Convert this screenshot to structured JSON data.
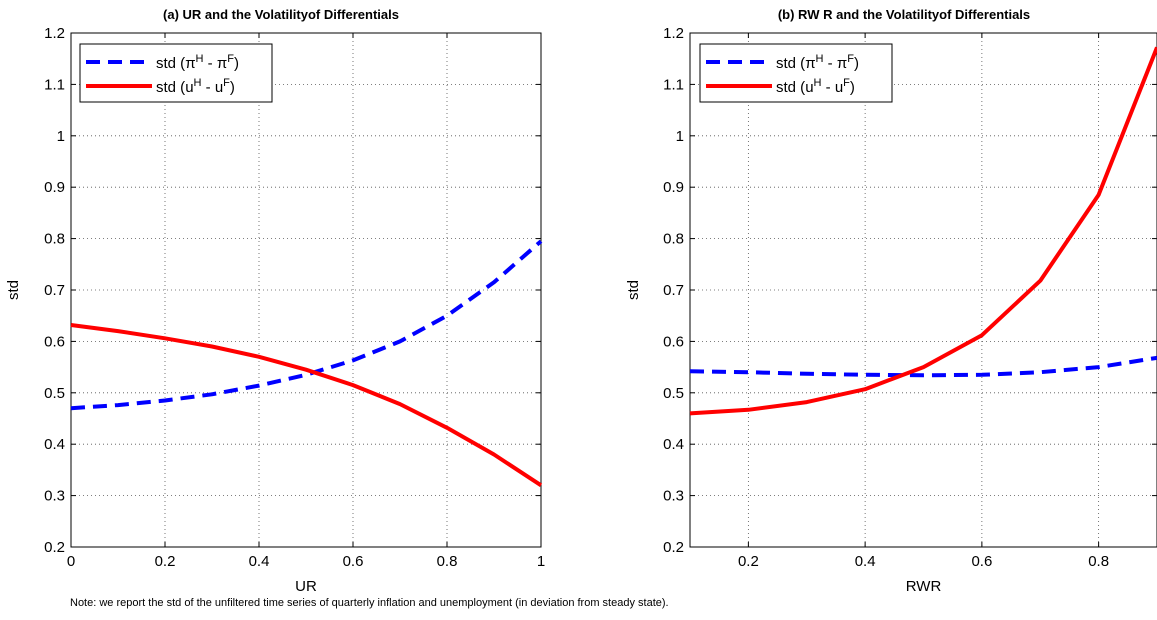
{
  "chart_data": [
    {
      "type": "line",
      "title": "(a) UR and the Volatilityof Differentials",
      "xlabel": "UR",
      "ylabel": "std",
      "xlim": [
        0,
        1
      ],
      "ylim": [
        0.2,
        1.2
      ],
      "xticks": [
        0,
        0.2,
        0.4,
        0.6,
        0.8,
        1
      ],
      "xtick_labels": [
        "0",
        "0.2",
        "0.4",
        "0.6",
        "0.8",
        "1"
      ],
      "yticks": [
        0.2,
        0.3,
        0.4,
        0.5,
        0.6,
        0.7,
        0.8,
        0.9,
        1,
        1.1,
        1.2
      ],
      "ytick_labels": [
        "0.2",
        "0.3",
        "0.4",
        "0.5",
        "0.6",
        "0.7",
        "0.8",
        "0.9",
        "1",
        "1.1",
        "1.2"
      ],
      "grid": true,
      "legend_position": "top-left",
      "series": [
        {
          "name": "std (π^H - π^F)",
          "legend_base": "std (",
          "legend_sym1": "π",
          "legend_sup1": "H",
          "legend_mid": " -  ",
          "legend_sym2": "π",
          "legend_sup2": "F",
          "legend_end": ")",
          "color": "#0000ff",
          "style": "dashed",
          "x": [
            0,
            0.1,
            0.2,
            0.3,
            0.4,
            0.5,
            0.6,
            0.7,
            0.8,
            0.9,
            1.0
          ],
          "y": [
            0.47,
            0.476,
            0.485,
            0.497,
            0.514,
            0.535,
            0.563,
            0.6,
            0.65,
            0.715,
            0.795
          ]
        },
        {
          "name": "std (u^H - u^F)",
          "legend_base": "std (",
          "legend_sym1": "u",
          "legend_sup1": "H",
          "legend_mid": " -  ",
          "legend_sym2": "u",
          "legend_sup2": "F",
          "legend_end": ")",
          "color": "#ff0000",
          "style": "solid",
          "x": [
            0,
            0.1,
            0.2,
            0.3,
            0.4,
            0.5,
            0.6,
            0.7,
            0.8,
            0.9,
            1.0
          ],
          "y": [
            0.632,
            0.62,
            0.606,
            0.59,
            0.57,
            0.545,
            0.515,
            0.478,
            0.432,
            0.38,
            0.32
          ]
        }
      ]
    },
    {
      "type": "line",
      "title": "(b) RW R and the Volatilityof Differentials",
      "xlabel": "RWR",
      "ylabel": "std",
      "xlim": [
        0.1,
        0.9
      ],
      "ylim": [
        0.2,
        1.2
      ],
      "xticks": [
        0.2,
        0.4,
        0.6,
        0.8
      ],
      "xtick_labels": [
        "0.2",
        "0.4",
        "0.6",
        "0.8"
      ],
      "yticks": [
        0.2,
        0.3,
        0.4,
        0.5,
        0.6,
        0.7,
        0.8,
        0.9,
        1,
        1.1,
        1.2
      ],
      "ytick_labels": [
        "0.2",
        "0.3",
        "0.4",
        "0.5",
        "0.6",
        "0.7",
        "0.8",
        "0.9",
        "1",
        "1.1",
        "1.2"
      ],
      "grid": true,
      "legend_position": "top-left",
      "series": [
        {
          "name": "std (π^H - π^F)",
          "legend_base": "std (",
          "legend_sym1": "π",
          "legend_sup1": "H",
          "legend_mid": " -  ",
          "legend_sym2": "π",
          "legend_sup2": "F",
          "legend_end": ")",
          "color": "#0000ff",
          "style": "dashed",
          "x": [
            0.1,
            0.2,
            0.3,
            0.4,
            0.5,
            0.6,
            0.7,
            0.8,
            0.9
          ],
          "y": [
            0.542,
            0.54,
            0.537,
            0.535,
            0.534,
            0.535,
            0.54,
            0.55,
            0.568
          ]
        },
        {
          "name": "std (u^H - u^F)",
          "legend_base": "std (",
          "legend_sym1": "u",
          "legend_sup1": "H",
          "legend_mid": " -  ",
          "legend_sym2": "u",
          "legend_sup2": "F",
          "legend_end": ")",
          "color": "#ff0000",
          "style": "solid",
          "x": [
            0.1,
            0.2,
            0.3,
            0.4,
            0.5,
            0.6,
            0.7,
            0.8,
            0.9
          ],
          "y": [
            0.46,
            0.467,
            0.482,
            0.507,
            0.55,
            0.612,
            0.718,
            0.885,
            1.172
          ]
        }
      ]
    }
  ],
  "note": "Note: we report the std of the unfiltered time series of quarterly inflation and unemployment (in deviation from steady state)."
}
